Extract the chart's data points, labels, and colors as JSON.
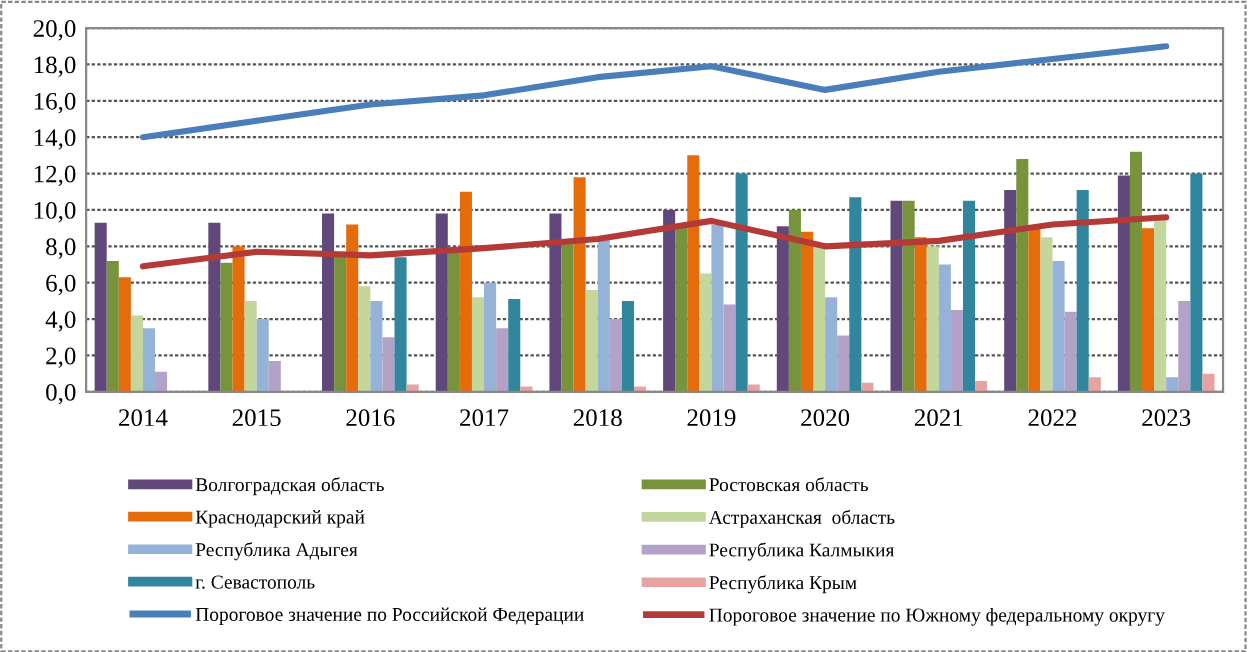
{
  "chart_data": {
    "type": "bar",
    "categories": [
      "2014",
      "2015",
      "2016",
      "2017",
      "2018",
      "2019",
      "2020",
      "2021",
      "2022",
      "2023"
    ],
    "series": [
      {
        "name": "Волгоградская область",
        "color": "#60497a",
        "values": [
          9.3,
          9.3,
          9.8,
          9.8,
          9.8,
          10.0,
          9.1,
          10.5,
          11.1,
          11.9
        ]
      },
      {
        "name": "Ростовская область",
        "color": "#77933c",
        "values": [
          7.2,
          7.1,
          7.7,
          7.9,
          8.2,
          9.2,
          10.0,
          10.5,
          12.8,
          13.2
        ]
      },
      {
        "name": "Краснодарский край",
        "color": "#e46c0a",
        "values": [
          6.3,
          8.0,
          9.2,
          11.0,
          11.8,
          13.0,
          8.8,
          8.5,
          9.1,
          9.0
        ]
      },
      {
        "name": "Астраханская  область",
        "color": "#c3d69b",
        "values": [
          4.2,
          5.0,
          5.8,
          5.2,
          5.6,
          6.5,
          8.0,
          8.0,
          8.5,
          9.5
        ]
      },
      {
        "name": "Республика Адыгея",
        "color": "#95b3d7",
        "values": [
          3.5,
          4.0,
          5.0,
          6.0,
          8.4,
          9.2,
          5.2,
          7.0,
          7.2,
          0.8
        ]
      },
      {
        "name": "Республика Калмыкия",
        "color": "#b3a2c7",
        "values": [
          1.1,
          1.7,
          3.0,
          3.5,
          4.0,
          4.8,
          3.1,
          4.5,
          4.4,
          5.0
        ]
      },
      {
        "name": "г. Севастополь",
        "color": "#31859c",
        "values": [
          null,
          null,
          7.4,
          5.1,
          5.0,
          12.0,
          10.7,
          10.5,
          11.1,
          12.0
        ]
      },
      {
        "name": "Республика Крым",
        "color": "#e6a3a1",
        "values": [
          null,
          null,
          0.4,
          0.3,
          0.3,
          0.4,
          0.5,
          0.6,
          0.8,
          1.0
        ]
      },
      {
        "name": "Пороговое значение по Российской Федерации",
        "type": "line",
        "color": "#4a7ebb",
        "values": [
          14.0,
          14.9,
          15.8,
          16.3,
          17.3,
          17.9,
          16.6,
          17.6,
          18.3,
          19.0
        ]
      },
      {
        "name": "Пороговое значение по Южному федеральному округу",
        "type": "line",
        "color": "#b33a37",
        "values": [
          6.9,
          7.7,
          7.5,
          7.9,
          8.4,
          9.4,
          8.0,
          8.3,
          9.2,
          9.6
        ]
      }
    ],
    "ylim": [
      0,
      20
    ],
    "yticks": [
      {
        "value": 0,
        "label": "0,0"
      },
      {
        "value": 2,
        "label": "2,0"
      },
      {
        "value": 4,
        "label": "4,0"
      },
      {
        "value": 6,
        "label": "6,0"
      },
      {
        "value": 8,
        "label": "8,0"
      },
      {
        "value": 10,
        "label": "10,0"
      },
      {
        "value": 12,
        "label": "12,0"
      },
      {
        "value": 14,
        "label": "14,0"
      },
      {
        "value": 16,
        "label": "16,0"
      },
      {
        "value": 18,
        "label": "18,0"
      },
      {
        "value": 20,
        "label": "20,0"
      }
    ],
    "grid": "y",
    "legend": "bottom"
  }
}
